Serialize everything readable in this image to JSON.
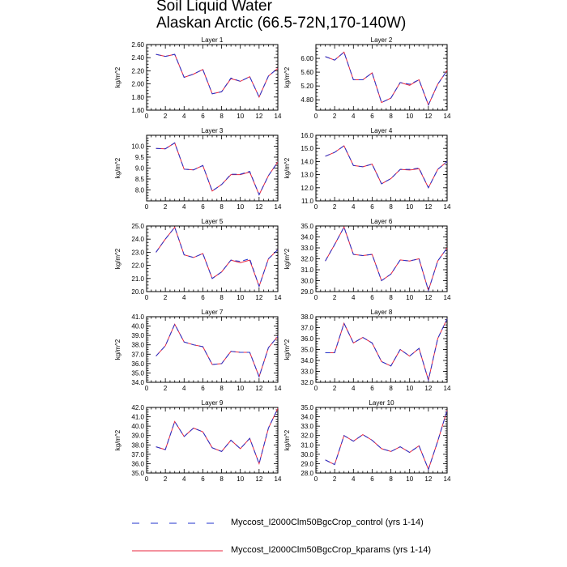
{
  "title": {
    "line1": "Soil Liquid Water",
    "line2": "Alaskan Arctic (66.5-72N,170-140W)"
  },
  "legend": [
    {
      "label": "Myccost_I2000Clm50BgcCrop_control (yrs 1-14)",
      "color": "#2233cc",
      "style": "dashed"
    },
    {
      "label": "Myccost_I2000Clm50BgcCrop_kparams (yrs 1-14)",
      "color": "#e8243c",
      "style": "solid"
    }
  ],
  "chart_data": [
    {
      "type": "line",
      "title": "Layer 1",
      "ylabel": "kg/m^2",
      "xlim": [
        0,
        14
      ],
      "ylim": [
        1.6,
        2.6
      ],
      "xticks": [
        "0",
        "2",
        "4",
        "6",
        "8",
        "10",
        "12",
        "14"
      ],
      "yticks": [
        "1.60",
        "1.80",
        "2.00",
        "2.20",
        "2.40",
        "2.60"
      ],
      "x": [
        1,
        2,
        3,
        4,
        5,
        6,
        7,
        8,
        9,
        10,
        11,
        12,
        13,
        14
      ],
      "series": [
        {
          "name": "Myccost_I2000Clm50BgcCrop_control (yrs 1-14)",
          "values": [
            2.45,
            2.42,
            2.45,
            2.1,
            2.15,
            2.22,
            1.85,
            1.88,
            2.09,
            2.04,
            2.11,
            1.8,
            2.12,
            2.24
          ]
        },
        {
          "name": "Myccost_I2000Clm50BgcCrop_kparams (yrs 1-14)",
          "values": [
            2.45,
            2.42,
            2.45,
            2.1,
            2.15,
            2.22,
            1.85,
            1.88,
            2.08,
            2.04,
            2.11,
            1.8,
            2.12,
            2.24
          ]
        }
      ]
    },
    {
      "type": "line",
      "title": "Layer 2",
      "ylabel": "kg/m^2",
      "xlim": [
        0,
        14
      ],
      "ylim": [
        4.5,
        6.4
      ],
      "xticks": [
        "0",
        "2",
        "4",
        "6",
        "8",
        "10",
        "12",
        "14"
      ],
      "yticks": [
        "4.80",
        "5.20",
        "5.60",
        "6.00"
      ],
      "x": [
        1,
        2,
        3,
        4,
        5,
        6,
        7,
        8,
        9,
        10,
        11,
        12,
        13,
        14
      ],
      "series": [
        {
          "name": "Myccost_I2000Clm50BgcCrop_control (yrs 1-14)",
          "values": [
            6.05,
            5.95,
            6.18,
            5.38,
            5.38,
            5.58,
            4.72,
            4.85,
            5.3,
            5.25,
            5.38,
            4.65,
            5.25,
            5.65
          ]
        },
        {
          "name": "Myccost_I2000Clm50BgcCrop_kparams (yrs 1-14)",
          "values": [
            6.05,
            5.95,
            6.18,
            5.38,
            5.38,
            5.58,
            4.72,
            4.85,
            5.3,
            5.22,
            5.38,
            4.65,
            5.25,
            5.65
          ]
        }
      ]
    },
    {
      "type": "line",
      "title": "Layer 3",
      "ylabel": "kg/m^2",
      "xlim": [
        0,
        14
      ],
      "ylim": [
        7.5,
        10.5
      ],
      "xticks": [
        "0",
        "2",
        "4",
        "6",
        "8",
        "10",
        "12",
        "14"
      ],
      "yticks": [
        "8.0",
        "8.5",
        "9.0",
        "9.5",
        "10.0"
      ],
      "x": [
        1,
        2,
        3,
        4,
        5,
        6,
        7,
        8,
        9,
        10,
        11,
        12,
        13,
        14
      ],
      "series": [
        {
          "name": "Myccost_I2000Clm50BgcCrop_control (yrs 1-14)",
          "values": [
            9.9,
            9.88,
            10.15,
            8.95,
            8.92,
            9.12,
            7.95,
            8.25,
            8.72,
            8.72,
            8.85,
            7.78,
            8.65,
            9.28
          ]
        },
        {
          "name": "Myccost_I2000Clm50BgcCrop_kparams (yrs 1-14)",
          "values": [
            9.9,
            9.88,
            10.15,
            8.95,
            8.92,
            9.12,
            7.95,
            8.25,
            8.7,
            8.7,
            8.82,
            7.78,
            8.65,
            9.28
          ]
        }
      ]
    },
    {
      "type": "line",
      "title": "Layer 4",
      "ylabel": "kg/m^2",
      "xlim": [
        0,
        14
      ],
      "ylim": [
        11.0,
        16.0
      ],
      "xticks": [
        "0",
        "2",
        "4",
        "6",
        "8",
        "10",
        "12",
        "14"
      ],
      "yticks": [
        "11.0",
        "12.0",
        "13.0",
        "14.0",
        "15.0",
        "16.0"
      ],
      "x": [
        1,
        2,
        3,
        4,
        5,
        6,
        7,
        8,
        9,
        10,
        11,
        12,
        13,
        14
      ],
      "series": [
        {
          "name": "Myccost_I2000Clm50BgcCrop_control (yrs 1-14)",
          "values": [
            14.4,
            14.7,
            15.2,
            13.7,
            13.6,
            13.8,
            12.3,
            12.7,
            13.4,
            13.4,
            13.5,
            12.0,
            13.4,
            14.0
          ]
        },
        {
          "name": "Myccost_I2000Clm50BgcCrop_kparams (yrs 1-14)",
          "values": [
            14.4,
            14.7,
            15.2,
            13.7,
            13.6,
            13.8,
            12.3,
            12.7,
            13.4,
            13.35,
            13.45,
            12.0,
            13.4,
            14.0
          ]
        }
      ]
    },
    {
      "type": "line",
      "title": "Layer 5",
      "ylabel": "kg/m^2",
      "xlim": [
        0,
        14
      ],
      "ylim": [
        20.0,
        25.0
      ],
      "xticks": [
        "0",
        "2",
        "4",
        "6",
        "8",
        "10",
        "12",
        "14"
      ],
      "yticks": [
        "20.0",
        "21.0",
        "22.0",
        "23.0",
        "24.0",
        "25.0"
      ],
      "x": [
        1,
        2,
        3,
        4,
        5,
        6,
        7,
        8,
        9,
        10,
        11,
        12,
        13,
        14
      ],
      "series": [
        {
          "name": "Myccost_I2000Clm50BgcCrop_control (yrs 1-14)",
          "values": [
            23.0,
            24.0,
            24.9,
            22.8,
            22.6,
            22.9,
            21.0,
            21.5,
            22.4,
            22.3,
            22.5,
            20.4,
            22.5,
            23.2
          ]
        },
        {
          "name": "Myccost_I2000Clm50BgcCrop_kparams (yrs 1-14)",
          "values": [
            23.0,
            24.0,
            24.9,
            22.8,
            22.6,
            22.9,
            21.0,
            21.5,
            22.4,
            22.2,
            22.4,
            20.4,
            22.5,
            23.2
          ]
        }
      ]
    },
    {
      "type": "line",
      "title": "Layer 6",
      "ylabel": "kg/m^2",
      "xlim": [
        0,
        14
      ],
      "ylim": [
        29.0,
        35.0
      ],
      "xticks": [
        "0",
        "2",
        "4",
        "6",
        "8",
        "10",
        "12",
        "14"
      ],
      "yticks": [
        "29.0",
        "30.0",
        "31.0",
        "32.0",
        "33.0",
        "34.0",
        "35.0"
      ],
      "x": [
        1,
        2,
        3,
        4,
        5,
        6,
        7,
        8,
        9,
        10,
        11,
        12,
        13,
        14
      ],
      "series": [
        {
          "name": "Myccost_I2000Clm50BgcCrop_control (yrs 1-14)",
          "values": [
            31.8,
            33.3,
            34.9,
            32.4,
            32.3,
            32.4,
            30.0,
            30.6,
            31.9,
            31.8,
            32.0,
            29.1,
            31.8,
            33.0
          ]
        },
        {
          "name": "Myccost_I2000Clm50BgcCrop_kparams (yrs 1-14)",
          "values": [
            31.8,
            33.3,
            34.9,
            32.4,
            32.3,
            32.4,
            30.0,
            30.6,
            31.9,
            31.8,
            32.0,
            29.1,
            31.8,
            33.0
          ]
        }
      ]
    },
    {
      "type": "line",
      "title": "Layer 7",
      "ylabel": "kg/m^2",
      "xlim": [
        0,
        14
      ],
      "ylim": [
        34.0,
        41.0
      ],
      "xticks": [
        "0",
        "2",
        "4",
        "6",
        "8",
        "10",
        "12",
        "14"
      ],
      "yticks": [
        "34.0",
        "35.0",
        "36.0",
        "37.0",
        "38.0",
        "39.0",
        "40.0",
        "41.0"
      ],
      "x": [
        1,
        2,
        3,
        4,
        5,
        6,
        7,
        8,
        9,
        10,
        11,
        12,
        13,
        14
      ],
      "series": [
        {
          "name": "Myccost_I2000Clm50BgcCrop_control (yrs 1-14)",
          "values": [
            36.8,
            37.9,
            40.2,
            38.3,
            38.0,
            37.8,
            35.9,
            36.0,
            37.3,
            37.2,
            37.2,
            34.6,
            37.7,
            38.9
          ]
        },
        {
          "name": "Myccost_I2000Clm50BgcCrop_kparams (yrs 1-14)",
          "values": [
            36.8,
            37.9,
            40.2,
            38.3,
            38.0,
            37.8,
            35.9,
            36.0,
            37.3,
            37.2,
            37.2,
            34.6,
            37.7,
            38.9
          ]
        }
      ]
    },
    {
      "type": "line",
      "title": "Layer 8",
      "ylabel": "kg/m^2",
      "xlim": [
        0,
        14
      ],
      "ylim": [
        32.0,
        38.0
      ],
      "xticks": [
        "0",
        "2",
        "4",
        "6",
        "8",
        "10",
        "12",
        "14"
      ],
      "yticks": [
        "32.0",
        "33.0",
        "34.0",
        "35.0",
        "36.0",
        "37.0",
        "38.0"
      ],
      "x": [
        1,
        2,
        3,
        4,
        5,
        6,
        7,
        8,
        9,
        10,
        11,
        12,
        13,
        14
      ],
      "series": [
        {
          "name": "Myccost_I2000Clm50BgcCrop_control (yrs 1-14)",
          "values": [
            34.7,
            34.7,
            37.4,
            35.6,
            36.1,
            35.6,
            33.9,
            33.5,
            35.0,
            34.4,
            35.1,
            32.2,
            36.0,
            37.8
          ]
        },
        {
          "name": "Myccost_I2000Clm50BgcCrop_kparams (yrs 1-14)",
          "values": [
            34.7,
            34.7,
            37.4,
            35.6,
            36.1,
            35.6,
            33.9,
            33.5,
            35.0,
            34.4,
            35.1,
            32.2,
            36.0,
            37.8
          ]
        }
      ]
    },
    {
      "type": "line",
      "title": "Layer 9",
      "ylabel": "kg/m^2",
      "xlim": [
        0,
        14
      ],
      "ylim": [
        35.0,
        42.0
      ],
      "xticks": [
        "0",
        "2",
        "4",
        "6",
        "8",
        "10",
        "12",
        "14"
      ],
      "yticks": [
        "35.0",
        "36.0",
        "37.0",
        "38.0",
        "39.0",
        "40.0",
        "41.0",
        "42.0"
      ],
      "x": [
        1,
        2,
        3,
        4,
        5,
        6,
        7,
        8,
        9,
        10,
        11,
        12,
        13,
        14
      ],
      "series": [
        {
          "name": "Myccost_I2000Clm50BgcCrop_control (yrs 1-14)",
          "values": [
            37.8,
            37.5,
            40.5,
            38.9,
            39.8,
            39.4,
            37.7,
            37.3,
            38.5,
            37.6,
            38.7,
            36.0,
            39.8,
            41.9
          ]
        },
        {
          "name": "Myccost_I2000Clm50BgcCrop_kparams (yrs 1-14)",
          "values": [
            37.8,
            37.5,
            40.5,
            38.9,
            39.8,
            39.4,
            37.7,
            37.3,
            38.5,
            37.6,
            38.7,
            36.0,
            39.8,
            41.9
          ]
        }
      ]
    },
    {
      "type": "line",
      "title": "Layer 10",
      "ylabel": "kg/m^2",
      "xlim": [
        0,
        14
      ],
      "ylim": [
        28.0,
        35.0
      ],
      "xticks": [
        "0",
        "2",
        "4",
        "6",
        "8",
        "10",
        "12",
        "14"
      ],
      "yticks": [
        "28.0",
        "29.0",
        "30.0",
        "31.0",
        "32.0",
        "33.0",
        "34.0",
        "35.0"
      ],
      "x": [
        1,
        2,
        3,
        4,
        5,
        6,
        7,
        8,
        9,
        10,
        11,
        12,
        13,
        14
      ],
      "series": [
        {
          "name": "Myccost_I2000Clm50BgcCrop_control (yrs 1-14)",
          "values": [
            29.4,
            28.9,
            32.0,
            31.4,
            32.1,
            31.5,
            30.6,
            30.3,
            30.8,
            30.2,
            30.9,
            28.4,
            31.4,
            34.7
          ]
        },
        {
          "name": "Myccost_I2000Clm50BgcCrop_kparams (yrs 1-14)",
          "values": [
            29.4,
            28.9,
            32.0,
            31.4,
            32.1,
            31.5,
            30.6,
            30.3,
            30.8,
            30.2,
            30.9,
            28.4,
            31.4,
            34.7
          ]
        }
      ]
    }
  ]
}
